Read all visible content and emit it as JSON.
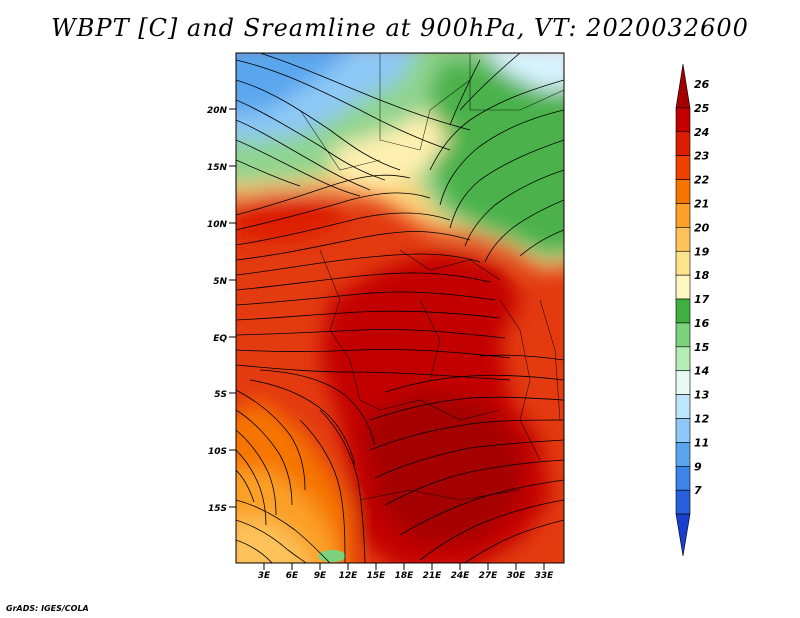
{
  "title": "WBPT [C] and Sreamline at 900hPa, VT: 2020032600",
  "credit": "GrADS: IGES/COLA",
  "lat_labels": [
    "20N",
    "15N",
    "10N",
    "5N",
    "EQ",
    "5S",
    "10S",
    "15S"
  ],
  "lon_labels": [
    "3E",
    "6E",
    "9E",
    "12E",
    "15E",
    "18E",
    "21E",
    "24E",
    "27E",
    "30E",
    "33E"
  ],
  "colorbar": {
    "labels": [
      "26",
      "25",
      "24",
      "23",
      "22",
      "21",
      "20",
      "19",
      "18",
      "17",
      "16",
      "15",
      "14",
      "13",
      "12",
      "11",
      "9",
      "7"
    ],
    "colors": [
      "#a50000",
      "#c30000",
      "#dc1e00",
      "#ee4100",
      "#f67400",
      "#fba028",
      "#fdc35a",
      "#fde38c",
      "#fff6c0",
      "#40b040",
      "#7cd27c",
      "#b5ecb5",
      "#e6f9f2",
      "#bde6fb",
      "#8ec8f6",
      "#5aa6ee",
      "#3c84e8",
      "#2660dc",
      "#1a3fd0"
    ]
  }
}
